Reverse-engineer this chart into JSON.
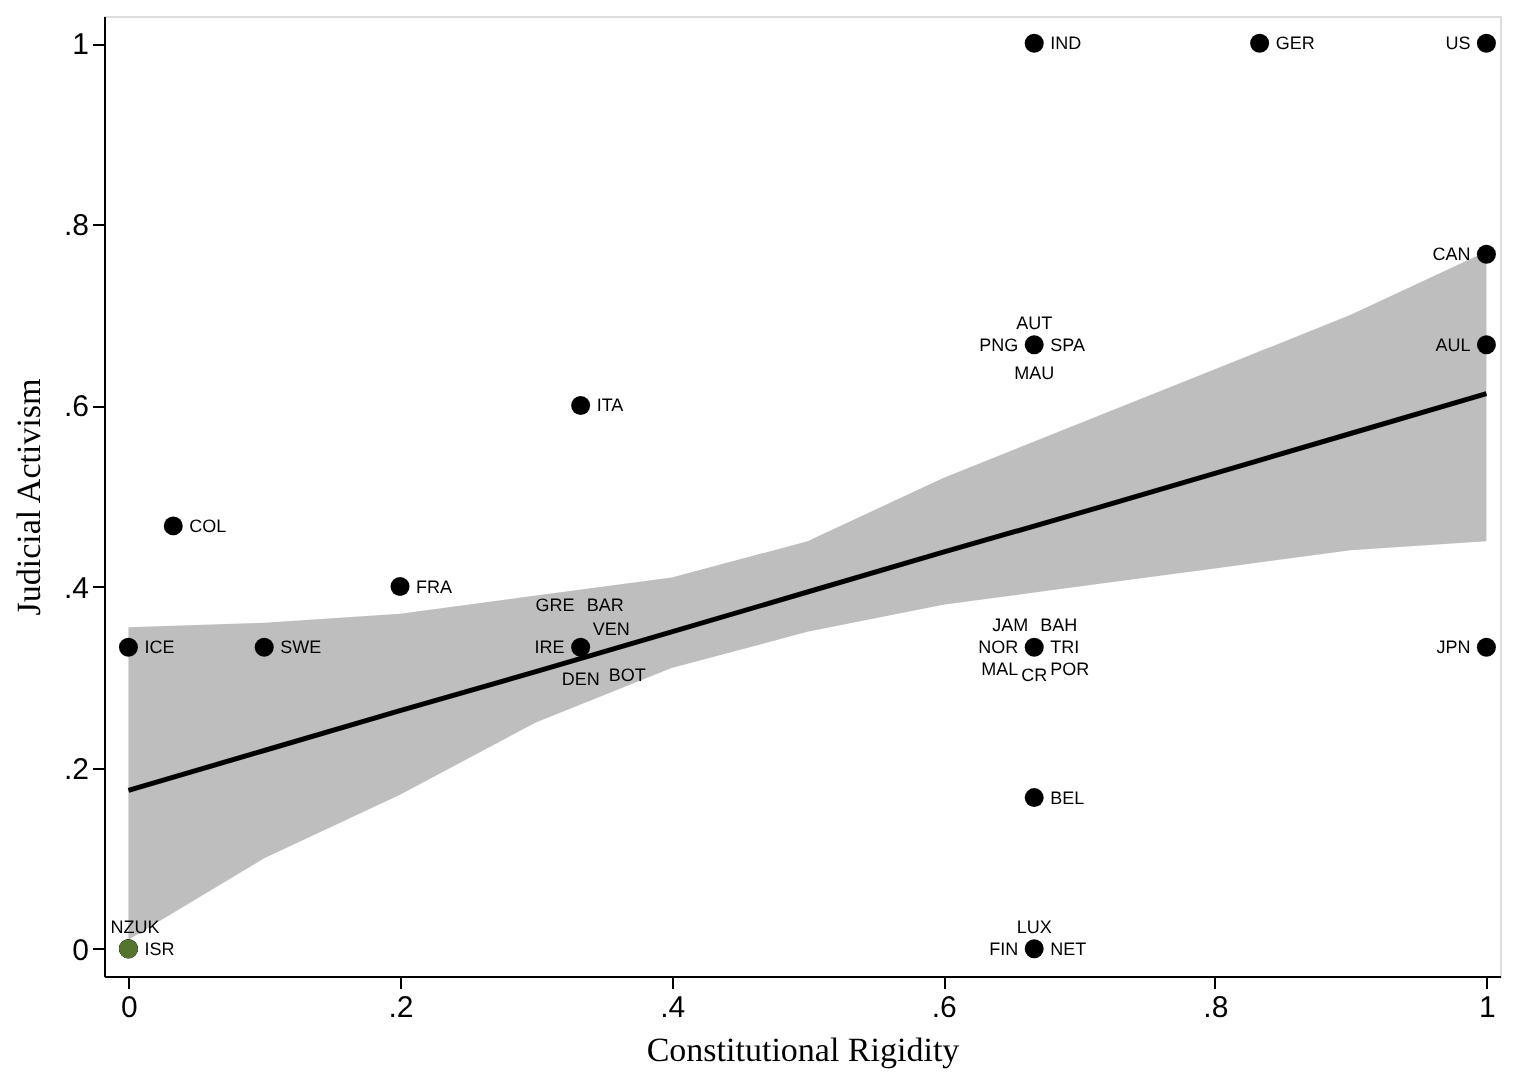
{
  "chart_data": {
    "type": "scatter",
    "xlabel": "Constitutional Rigidity",
    "ylabel": "Judicial Activism",
    "xlim": [
      -0.018,
      1.01
    ],
    "ylim": [
      -0.03,
      1.03
    ],
    "xticks": [
      0,
      {
        "value": 0.2,
        "label": ".2"
      },
      {
        "value": 0.4,
        "label": ".4"
      },
      {
        "value": 0.6,
        "label": ".6"
      },
      {
        "value": 0.8,
        "label": ".8"
      },
      1
    ],
    "yticks": [
      0,
      {
        "value": 0.2,
        "label": ".2"
      },
      {
        "value": 0.4,
        "label": ".4"
      },
      {
        "value": 0.6,
        "label": ".6"
      },
      {
        "value": 0.8,
        "label": ".8"
      },
      1
    ],
    "grid": false,
    "legend": false,
    "series": [
      {
        "type": "line",
        "color": "#000000",
        "x": [
          0,
          0.1,
          0.2,
          0.3,
          0.4,
          0.5,
          0.6,
          0.7,
          0.8,
          0.9,
          1
        ],
        "values": [
          0.175,
          0.219,
          0.263,
          0.306,
          0.35,
          0.394,
          0.438,
          0.481,
          0.525,
          0.569,
          0.613
        ],
        "lower": [
          0.01,
          0.1,
          0.17,
          0.25,
          0.31,
          0.35,
          0.38,
          0.4,
          0.42,
          0.44,
          0.45
        ],
        "upper": [
          0.355,
          0.36,
          0.37,
          0.39,
          0.41,
          0.45,
          0.52,
          0.58,
          0.64,
          0.7,
          0.77
        ]
      },
      {
        "type": "scatter",
        "marker": "circle",
        "x": [
          0,
          0,
          0.033,
          0.1,
          0.2,
          0.333,
          0.333,
          0.667,
          0.833,
          1,
          1,
          0.667,
          1,
          0.667,
          1,
          0.667,
          0.667,
          0,
          0
        ],
        "values": [
          0.333,
          0,
          0.467,
          0.333,
          0.4,
          0.6,
          0.333,
          1,
          1,
          1,
          0.767,
          0.667,
          0.667,
          0.333,
          0.333,
          0.167,
          0,
          0,
          0
        ],
        "colors": [
          "#000000",
          "#000000",
          "#000000",
          "#000000",
          "#000000",
          "#000000",
          "#000000",
          "#000000",
          "#000000",
          "#000000",
          "#000000",
          "#000000",
          "#000000",
          "#000000",
          "#000000",
          "#000000",
          "#000000",
          "#000000",
          "#55752f"
        ]
      }
    ],
    "annotations": [
      {
        "text": "ICE",
        "x": 0,
        "y": 0.333
      },
      {
        "text": "ISR",
        "x": 0,
        "y": 0
      },
      {
        "text": "NZ",
        "x": 0,
        "y": 0
      },
      {
        "text": "UK",
        "x": 0,
        "y": 0
      },
      {
        "text": "COL",
        "x": 0.033,
        "y": 0.467
      },
      {
        "text": "SWE",
        "x": 0.1,
        "y": 0.333
      },
      {
        "text": "FRA",
        "x": 0.2,
        "y": 0.4
      },
      {
        "text": "ITA",
        "x": 0.333,
        "y": 0.6
      },
      {
        "text": "VEN",
        "x": 0.333,
        "y": 0.333
      },
      {
        "text": "IRE",
        "x": 0.333,
        "y": 0.333
      },
      {
        "text": "GRE",
        "x": 0.333,
        "y": 0.333
      },
      {
        "text": "BAR",
        "x": 0.333,
        "y": 0.333
      },
      {
        "text": "DEN",
        "x": 0.333,
        "y": 0.333
      },
      {
        "text": "BOT",
        "x": 0.333,
        "y": 0.333
      },
      {
        "text": "IND",
        "x": 0.667,
        "y": 1
      },
      {
        "text": "GER",
        "x": 0.833,
        "y": 1
      },
      {
        "text": "US",
        "x": 1,
        "y": 1
      },
      {
        "text": "CAN",
        "x": 1,
        "y": 0.767
      },
      {
        "text": "SPA",
        "x": 0.667,
        "y": 0.667
      },
      {
        "text": "PNG",
        "x": 0.667,
        "y": 0.667
      },
      {
        "text": "AUT",
        "x": 0.667,
        "y": 0.667
      },
      {
        "text": "MAU",
        "x": 0.667,
        "y": 0.667
      },
      {
        "text": "AUL",
        "x": 1,
        "y": 0.667
      },
      {
        "text": "TRI",
        "x": 0.667,
        "y": 0.333
      },
      {
        "text": "NOR",
        "x": 0.667,
        "y": 0.333
      },
      {
        "text": "JAM",
        "x": 0.667,
        "y": 0.333
      },
      {
        "text": "BAH",
        "x": 0.667,
        "y": 0.333
      },
      {
        "text": "MAL",
        "x": 0.667,
        "y": 0.333
      },
      {
        "text": "POR",
        "x": 0.667,
        "y": 0.333
      },
      {
        "text": "CR",
        "x": 0.667,
        "y": 0.333
      },
      {
        "text": "JPN",
        "x": 1,
        "y": 0.333
      },
      {
        "text": "BEL",
        "x": 0.667,
        "y": 0.167
      },
      {
        "text": "NET",
        "x": 0.667,
        "y": 0
      },
      {
        "text": "FIN",
        "x": 0.667,
        "y": 0
      },
      {
        "text": "LUX",
        "x": 0.667,
        "y": 0
      }
    ]
  }
}
